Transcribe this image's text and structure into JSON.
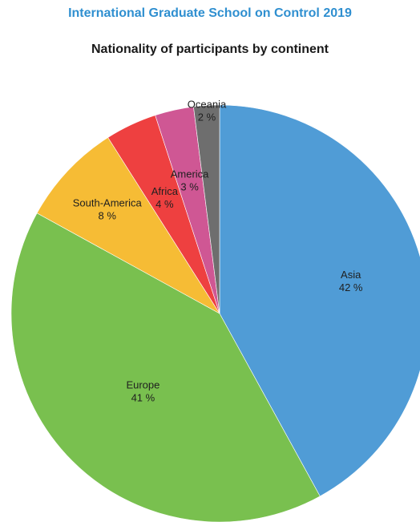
{
  "header": {
    "title": "International Graduate School on Control 2019"
  },
  "chart_data": {
    "type": "pie",
    "title": "Nationality of participants by continent",
    "legend": "none",
    "slices": [
      {
        "name": "Asia",
        "value": 42,
        "value_label": "42 %",
        "color": "#509cd6"
      },
      {
        "name": "Europe",
        "value": 41,
        "value_label": "41 %",
        "color": "#79c04f"
      },
      {
        "name": "South-America",
        "value": 8,
        "value_label": "8 %",
        "color": "#f6bc35"
      },
      {
        "name": "Africa",
        "value": 4,
        "value_label": "4 %",
        "color": "#ee4040"
      },
      {
        "name": "America",
        "value": 3,
        "value_label": "3 %",
        "color": "#cf5794"
      },
      {
        "name": "Oceania",
        "value": 2,
        "value_label": "2 %",
        "color": "#6e6e6e"
      }
    ]
  }
}
